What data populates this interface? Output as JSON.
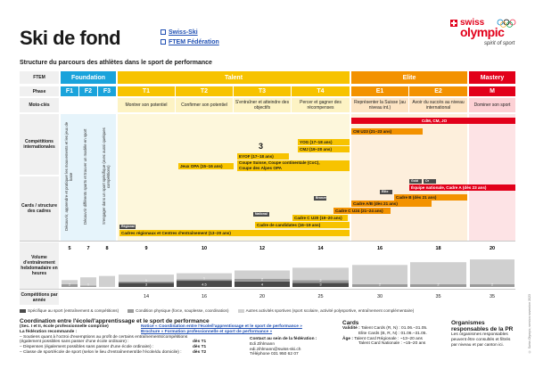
{
  "header": {
    "title": "Ski de fond",
    "links": [
      "Swiss-Ski",
      "FTEM Fédération"
    ],
    "logo": {
      "line1": "swiss",
      "line2": "olympic",
      "tagline": "spirit of sport"
    },
    "subtitle": "Structure du parcours des athlètes dans le sport de performance"
  },
  "colors": {
    "foundation": "#1aa3db",
    "talent": "#f7c300",
    "elite": "#f39200",
    "mastery": "#e2001a"
  },
  "row_labels": {
    "ftem": "FTEM",
    "phase": "Phase",
    "motto": "Moto-clés",
    "competitions": "Compétitions internationales",
    "cards": "Cards / structure des cadres",
    "volume": "Volume d'entraînement hebdomadaire en heures",
    "competitions_year": "Compétitions par année"
  },
  "ftem": [
    "Foundation",
    "Talent",
    "Elite",
    "Mastery"
  ],
  "phases": [
    "F1",
    "F2",
    "F3",
    "T1",
    "T2",
    "T3",
    "T4",
    "E1",
    "E2",
    "M"
  ],
  "mottos": [
    "Montrer son potentiel",
    "Confirmer son potentiel",
    "S'entraîner et atteindre des objectifs",
    "Percer et gagner des récompenses",
    "Représenter la Suisse (au niveau int.)",
    "Avoir du succès au niveau international",
    "Dominer son sport"
  ],
  "foundation_texts": [
    "Découvrir, apprendre et pratiquer les mouvements et les jeux de base",
    "Découvrir différents sports et trouver un modèle en sport",
    "S'engager dans un sport spécifique (avec aussi quelques compétitions)"
  ],
  "competitions": {
    "wc": "CdM, CM, JO",
    "u23": "CM U23 (21–23 ans)",
    "yog": "YOG (17–18 ans)",
    "cmj": "CMJ (19–20 ans)",
    "eyof": "EYOF (17–18 ans)",
    "jopa": "Jeux OPA (15–16 ans)",
    "cups1": "Coupe Suisse, Coupe continentale (CoC),",
    "cups2": "Coupe des Alpes OPA",
    "logo3": "3"
  },
  "cards": {
    "nat": "Équipe nationale, Cadre A (dès 23 ans)",
    "gold": "Gold",
    "silver": "Or",
    "elite": "Elite",
    "cadreb": "Cadre B (dès 21 ans)",
    "cadreab": "Cadre A/B (dès 21 ans)",
    "u24": "Cadre C U24 (21–24 ans)",
    "u20": "Cadre C U20 (19–20 ans)",
    "candidats": "Cadre de candidates (16–19 ans)",
    "regionaux": "Cadres régionaux et Centres d'entraînement (13–20 ans)",
    "tags": [
      "Régional",
      "National",
      "Bronze",
      "Elite"
    ]
  },
  "volume": {
    "totals": [
      "5",
      "7",
      "8",
      "9",
      "10",
      "12",
      "14",
      "16",
      "18",
      "20"
    ],
    "specific": [
      "2",
      "1",
      "",
      "1",
      "1",
      "2",
      "2",
      "2",
      "2",
      "2"
    ],
    "lower": [
      "",
      "",
      "",
      "3",
      "4.5",
      "4",
      "3",
      "",
      "",
      ""
    ]
  },
  "competitions_per_year": [
    "",
    "",
    "",
    "14",
    "16",
    "20",
    "25",
    "30",
    "35",
    "35"
  ],
  "legend": [
    {
      "label": "Spécifique au sport (entraînement & compétitions)",
      "color": "#4a4a4a"
    },
    {
      "label": "Condition physique (force, souplesse, coordination)",
      "color": "#9a9a9a"
    },
    {
      "label": "Autres activités sportives (sport scolaire, activité polysportive, entraînement complémentaire)",
      "color": "#d0d0d0"
    }
  ],
  "bottom": {
    "coord_title": "Coordination entre l'école/l'apprentissage et le sport de performance",
    "coord_sub": "(Sec. I et II, école professionnelle comprise)",
    "fed_reco": "La fédération recommande :",
    "reco_items": [
      "– Soutiens quant à l'octroi d'exemptions au profit de certains entraînements/compétitions",
      "  (également possibles sans passer d'une école ordinaire) :",
      "– Dispenses (également possibles sans passer d'une école ordinaire) :",
      "– Classe de sport/école de sport (selon le lieu d'entraînement/de l'école/du domicile) :"
    ],
    "reco_values": [
      "dès T1",
      "dès T1",
      "dès T2"
    ],
    "notice_links": [
      "Notice « Coordination entre l'école/l'apprentissage et le sport de performance »",
      "Brochure « Formation professionnelle et sport de performance »"
    ],
    "contact_title": "Contact au sein de la fédération :",
    "contact_lines": [
      "Edi Zihlmann",
      "edi.zihlmann@swiss-ski.ch",
      "Téléphone 031 950 62 07"
    ],
    "cards_title": "Cards",
    "validity_label": "Validité :",
    "validity": [
      "Talent Cards (R, N) :  01.06.–31.05.",
      "Elite Cards (B, R, N) :  01.06.–31.05."
    ],
    "age_label": "Âge :",
    "age": [
      "Talent Card Régionale : ~13–20 ans",
      "Talent Card Nationale : ~15–20 ans"
    ],
    "org_title": "Organismes responsables de la PR",
    "org_text": "Les organismes responsables peuvent être consultés et filtrés par niveau et par canton ici."
  },
  "sidenote": "© Swiss Olympic, version novembre 2023"
}
